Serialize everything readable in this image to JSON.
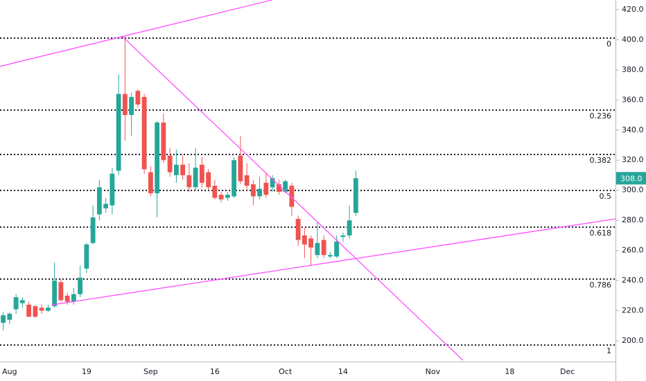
{
  "chart_data": {
    "type": "candlestick",
    "categories": [
      null,
      "Aug",
      null,
      null,
      null,
      null,
      null,
      null,
      null,
      null,
      null,
      null,
      null,
      "19",
      null,
      null,
      null,
      null,
      null,
      null,
      null,
      null,
      null,
      "Sep",
      null,
      null,
      null,
      null,
      null,
      null,
      null,
      null,
      null,
      "16",
      null,
      null,
      null,
      null,
      null,
      null,
      null,
      null,
      null,
      null,
      "Oct",
      null,
      null,
      null,
      null,
      null,
      null,
      null,
      null,
      "14",
      null,
      null,
      null,
      null,
      null,
      null,
      null,
      null,
      null,
      null,
      null,
      null,
      null,
      "Nov",
      null,
      null,
      null,
      null,
      null,
      null,
      null,
      null,
      null,
      null,
      null,
      "18",
      null,
      null,
      null,
      null,
      null,
      null,
      null,
      null,
      "Dec",
      null,
      null,
      null,
      null,
      null,
      null,
      null
    ],
    "open": [
      212,
      214,
      221,
      225,
      224,
      223,
      222,
      220,
      223,
      239,
      230,
      226,
      231,
      248,
      265,
      284,
      288,
      290,
      313,
      364,
      350,
      366,
      362,
      312,
      298,
      345,
      323,
      310,
      317,
      310,
      302,
      317,
      312,
      303,
      297,
      295,
      296,
      323,
      310,
      304,
      296,
      305,
      302,
      304,
      299,
      303,
      281,
      270,
      268,
      257,
      267,
      256,
      256,
      269,
      270,
      285,
      null,
      null,
      null,
      null,
      null,
      null,
      null,
      null,
      null,
      null,
      null,
      null,
      null,
      null,
      null,
      null,
      null,
      null,
      null,
      null,
      null,
      null,
      null,
      null,
      null,
      null,
      null,
      null,
      null,
      null,
      null,
      null,
      null,
      null,
      null,
      null,
      null,
      null,
      null,
      null
    ],
    "high": [
      219,
      219,
      231,
      229,
      226,
      224,
      224,
      224,
      252,
      241,
      232,
      235,
      250,
      265,
      290,
      307,
      295,
      315,
      377,
      402,
      365,
      367,
      364,
      316,
      346,
      351,
      328,
      327,
      323,
      318,
      328,
      322,
      314,
      307,
      299,
      299,
      322,
      336,
      318,
      307,
      309,
      311,
      310,
      307,
      307,
      305,
      283,
      275,
      270,
      279,
      270,
      259,
      270,
      272,
      290,
      313,
      null,
      null,
      null,
      null,
      null,
      null,
      null,
      null,
      null,
      null,
      null,
      null,
      null,
      null,
      null,
      null,
      null,
      null,
      null,
      null,
      null,
      null,
      null,
      null,
      null,
      null,
      null,
      null,
      null,
      null,
      null,
      null,
      null,
      null,
      null,
      null,
      null,
      null,
      null,
      null
    ],
    "low": [
      207,
      211,
      218,
      222,
      216,
      215,
      218,
      219,
      222,
      226,
      224,
      224,
      229,
      245,
      264,
      280,
      285,
      284,
      310,
      333,
      336,
      355,
      311,
      296,
      282,
      318,
      309,
      305,
      307,
      299,
      300,
      302,
      300,
      294,
      292,
      293,
      295,
      304,
      300,
      290,
      294,
      295,
      299,
      297,
      298,
      283,
      263,
      255,
      250,
      255,
      255,
      255,
      255,
      266,
      268,
      283,
      null,
      null,
      null,
      null,
      null,
      null,
      null,
      null,
      null,
      null,
      null,
      null,
      null,
      null,
      null,
      null,
      null,
      null,
      null,
      null,
      null,
      null,
      null,
      null,
      null,
      null,
      null,
      null,
      null,
      null,
      null,
      null,
      null,
      null,
      null,
      null,
      null,
      null,
      null,
      null
    ],
    "close": [
      217,
      218,
      229,
      227,
      216,
      216,
      220,
      222,
      240,
      227,
      226,
      231,
      242,
      264,
      282,
      302,
      291,
      311,
      364,
      350,
      362,
      357,
      314,
      298,
      345,
      320,
      312,
      317,
      310,
      302,
      315,
      305,
      302,
      295,
      294,
      297,
      320,
      306,
      303,
      296,
      301,
      297,
      308,
      299,
      306,
      289,
      267,
      264,
      262,
      265,
      257,
      257,
      266,
      270,
      280,
      308,
      null,
      null,
      null,
      null,
      null,
      null,
      null,
      null,
      null,
      null,
      null,
      null,
      null,
      null,
      null,
      null,
      null,
      null,
      null,
      null,
      null,
      null,
      null,
      null,
      null,
      null,
      null,
      null,
      null,
      null,
      null,
      null,
      null,
      null,
      null,
      null,
      null,
      null,
      null,
      null
    ],
    "up_color": "#26a69a",
    "down_color": "#ef5350",
    "ylim": [
      186.2,
      426.4
    ],
    "yticks": [
      {
        "value": 200,
        "label": "200.0"
      },
      {
        "value": 220,
        "label": "220.0"
      },
      {
        "value": 240,
        "label": "240.0"
      },
      {
        "value": 260,
        "label": "260.0"
      },
      {
        "value": 280,
        "label": "280.0"
      },
      {
        "value": 300,
        "label": "300.0"
      },
      {
        "value": 320,
        "label": "320.0"
      },
      {
        "value": 340,
        "label": "340.0"
      },
      {
        "value": 360,
        "label": "360.0"
      },
      {
        "value": 380,
        "label": "380.0"
      },
      {
        "value": 400,
        "label": "400.0"
      },
      {
        "value": 420,
        "label": "420.0"
      }
    ],
    "fib_levels": [
      {
        "label": "0",
        "value": 401.1
      },
      {
        "label": "0.236",
        "value": 353.3
      },
      {
        "label": "0.382",
        "value": 323.8
      },
      {
        "label": "0.5",
        "value": 299.9
      },
      {
        "label": "0.618",
        "value": 275.5
      },
      {
        "label": "0.786",
        "value": 241
      },
      {
        "label": "1",
        "value": 197.2
      }
    ],
    "trendlines": [
      {
        "points": [
          [
            -0.5,
            382.3
          ],
          [
            41.9,
            426.4
          ]
        ]
      },
      {
        "points": [
          [
            18.5,
            402.5
          ],
          [
            71.7,
            187.1
          ]
        ]
      },
      {
        "points": [
          [
            7.6,
            223.9
          ],
          [
            95.5,
            281
          ]
        ]
      }
    ],
    "trend_color": "#ff4dff",
    "last_price": {
      "label": "308.0",
      "value": 308
    }
  }
}
